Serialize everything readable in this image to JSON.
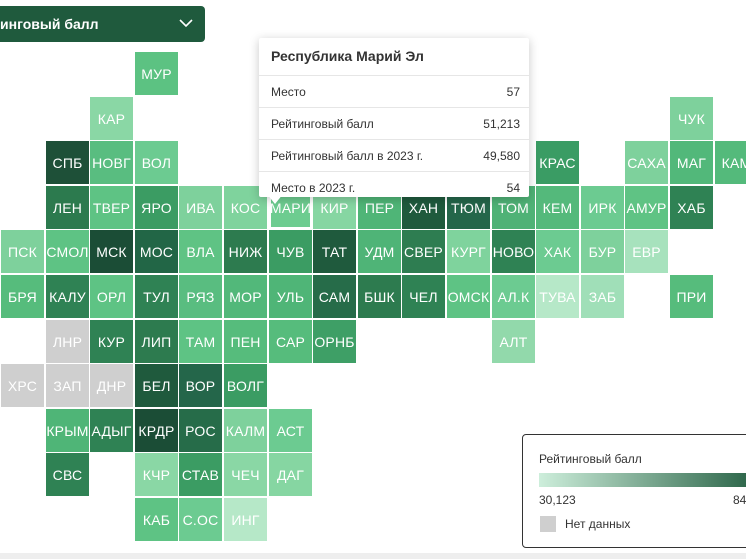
{
  "dropdown": {
    "label": "инговый балл"
  },
  "tooltip": {
    "title": "Республика Марий Эл",
    "rows": [
      {
        "label": "Место",
        "value": "57"
      },
      {
        "label": "Рейтинговый балл",
        "value": "51,213"
      },
      {
        "label": "Рейтинговый балл в 2023 г.",
        "value": "49,580"
      },
      {
        "label": "Место в 2023 г.",
        "value": "54"
      }
    ]
  },
  "legend": {
    "title": "Рейтинговый балл",
    "min": "30,123",
    "max": "84",
    "no_data": "Нет данных",
    "gradient_start": "#cdeedb",
    "gradient_end": "#1f5a3d",
    "no_data_color": "#cfcfcf"
  },
  "regions": [
    {
      "label": "МУР",
      "row": 0,
      "col": 3,
      "color": "#5cc282"
    },
    {
      "label": "КАР",
      "row": 1,
      "col": 2,
      "color": "#8ad7a5"
    },
    {
      "label": "ЧУК",
      "row": 1,
      "col": 15,
      "color": "#7ed19c"
    },
    {
      "label": "СПБ",
      "row": 2,
      "col": 1,
      "color": "#1e5038"
    },
    {
      "label": "НОВГ",
      "row": 2,
      "col": 2,
      "color": "#59bd80"
    },
    {
      "label": "ВОЛ",
      "row": 2,
      "col": 3,
      "color": "#6ccb91"
    },
    {
      "label": "КРАС",
      "row": 2,
      "col": 12,
      "color": "#3a9c64"
    },
    {
      "label": "САХА",
      "row": 2,
      "col": 14,
      "color": "#7ed19c"
    },
    {
      "label": "МАГ",
      "row": 2,
      "col": 15,
      "color": "#52b87a"
    },
    {
      "label": "КАМ",
      "row": 2,
      "col": 16,
      "color": "#54ba7b"
    },
    {
      "label": "ЛЕН",
      "row": 3,
      "col": 1,
      "color": "#2c7a4e"
    },
    {
      "label": "ТВЕР",
      "row": 3,
      "col": 2,
      "color": "#5ec384"
    },
    {
      "label": "ЯРО",
      "row": 3,
      "col": 3,
      "color": "#3b9c63"
    },
    {
      "label": "ИВА",
      "row": 3,
      "col": 4,
      "color": "#7ed19c"
    },
    {
      "label": "КОС",
      "row": 3,
      "col": 5,
      "color": "#7fd39d"
    },
    {
      "label": "МАРИ",
      "row": 3,
      "col": 6,
      "color": "#6dcc90",
      "selected": true
    },
    {
      "label": "КИР",
      "row": 3,
      "col": 7,
      "color": "#86d6a2"
    },
    {
      "label": "ПЕР",
      "row": 3,
      "col": 8,
      "color": "#4fb577"
    },
    {
      "label": "ХАН",
      "row": 3,
      "col": 9,
      "color": "#1f5a3d"
    },
    {
      "label": "ТЮМ",
      "row": 3,
      "col": 10,
      "color": "#24664a"
    },
    {
      "label": "ТОМ",
      "row": 3,
      "col": 11,
      "color": "#4fb276"
    },
    {
      "label": "КЕМ",
      "row": 3,
      "col": 12,
      "color": "#54b97b"
    },
    {
      "label": "ИРК",
      "row": 3,
      "col": 13,
      "color": "#6ccb91"
    },
    {
      "label": "АМУР",
      "row": 3,
      "col": 14,
      "color": "#5fc384"
    },
    {
      "label": "ХАБ",
      "row": 3,
      "col": 15,
      "color": "#2f8254"
    },
    {
      "label": "ПСК",
      "row": 4,
      "col": 0,
      "color": "#7ed19c"
    },
    {
      "label": "СМОЛ",
      "row": 4,
      "col": 1,
      "color": "#5ec384"
    },
    {
      "label": "МСК",
      "row": 4,
      "col": 2,
      "color": "#1b4d36"
    },
    {
      "label": "МОС",
      "row": 4,
      "col": 3,
      "color": "#226646"
    },
    {
      "label": "ВЛА",
      "row": 4,
      "col": 4,
      "color": "#5fc384"
    },
    {
      "label": "НИЖ",
      "row": 4,
      "col": 5,
      "color": "#2d7b4f"
    },
    {
      "label": "ЧУВ",
      "row": 4,
      "col": 6,
      "color": "#3b9c63"
    },
    {
      "label": "ТАТ",
      "row": 4,
      "col": 7,
      "color": "#1f5a3d"
    },
    {
      "label": "УДМ",
      "row": 4,
      "col": 8,
      "color": "#4fb477"
    },
    {
      "label": "СВЕР",
      "row": 4,
      "col": 9,
      "color": "#2e7d51"
    },
    {
      "label": "КУРГ",
      "row": 4,
      "col": 10,
      "color": "#7fd39d"
    },
    {
      "label": "НОВО",
      "row": 4,
      "col": 11,
      "color": "#2f8254"
    },
    {
      "label": "ХАК",
      "row": 4,
      "col": 12,
      "color": "#6ccb91"
    },
    {
      "label": "БУР",
      "row": 4,
      "col": 13,
      "color": "#7ed19c"
    },
    {
      "label": "ЕВР",
      "row": 4,
      "col": 14,
      "color": "#a7e2bd"
    },
    {
      "label": "БРЯ",
      "row": 5,
      "col": 0,
      "color": "#56bc7c"
    },
    {
      "label": "КАЛУ",
      "row": 5,
      "col": 1,
      "color": "#2f8254"
    },
    {
      "label": "ОРЛ",
      "row": 5,
      "col": 2,
      "color": "#5ec384"
    },
    {
      "label": "ТУЛ",
      "row": 5,
      "col": 3,
      "color": "#2f8254"
    },
    {
      "label": "РЯЗ",
      "row": 5,
      "col": 4,
      "color": "#59bd80"
    },
    {
      "label": "МОР",
      "row": 5,
      "col": 5,
      "color": "#52b87a"
    },
    {
      "label": "УЛЬ",
      "row": 5,
      "col": 6,
      "color": "#4fb577"
    },
    {
      "label": "САМ",
      "row": 5,
      "col": 7,
      "color": "#266c49"
    },
    {
      "label": "БШК",
      "row": 5,
      "col": 8,
      "color": "#2d7b4f"
    },
    {
      "label": "ЧЕЛ",
      "row": 5,
      "col": 9,
      "color": "#2f8254"
    },
    {
      "label": "ОМСК",
      "row": 5,
      "col": 10,
      "color": "#5ec384"
    },
    {
      "label": "АЛ.К",
      "row": 5,
      "col": 11,
      "color": "#6ccb91"
    },
    {
      "label": "ТУВА",
      "row": 5,
      "col": 12,
      "color": "#b6e8c8"
    },
    {
      "label": "ЗАБ",
      "row": 5,
      "col": 13,
      "color": "#a0dfb8"
    },
    {
      "label": "ПРИ",
      "row": 5,
      "col": 15,
      "color": "#56bc7c"
    },
    {
      "label": "ЛНР",
      "row": 6,
      "col": 1,
      "color": "#cfcfcf"
    },
    {
      "label": "КУР",
      "row": 6,
      "col": 2,
      "color": "#2f8254"
    },
    {
      "label": "ЛИП",
      "row": 6,
      "col": 3,
      "color": "#2d7b4f"
    },
    {
      "label": "ТАМ",
      "row": 6,
      "col": 4,
      "color": "#5ec384"
    },
    {
      "label": "ПЕН",
      "row": 6,
      "col": 5,
      "color": "#56bc7c"
    },
    {
      "label": "САР",
      "row": 6,
      "col": 6,
      "color": "#56bc7c"
    },
    {
      "label": "ОРНБ",
      "row": 6,
      "col": 7,
      "color": "#3e9f66"
    },
    {
      "label": "АЛТ",
      "row": 6,
      "col": 11,
      "color": "#92d9ab"
    },
    {
      "label": "ХРС",
      "row": 7,
      "col": 0,
      "color": "#cfcfcf"
    },
    {
      "label": "ЗАП",
      "row": 7,
      "col": 1,
      "color": "#cfcfcf"
    },
    {
      "label": "ДНР",
      "row": 7,
      "col": 2,
      "color": "#cfcfcf"
    },
    {
      "label": "БЕЛ",
      "row": 7,
      "col": 3,
      "color": "#1f5a3d"
    },
    {
      "label": "ВОР",
      "row": 7,
      "col": 4,
      "color": "#24664a"
    },
    {
      "label": "ВОЛГ",
      "row": 7,
      "col": 5,
      "color": "#3b9c63"
    },
    {
      "label": "КРЫМ",
      "row": 8,
      "col": 1,
      "color": "#4fb577"
    },
    {
      "label": "АДЫГ",
      "row": 8,
      "col": 2,
      "color": "#2f8254"
    },
    {
      "label": "КРДР",
      "row": 8,
      "col": 3,
      "color": "#1b4d36"
    },
    {
      "label": "РОС",
      "row": 8,
      "col": 4,
      "color": "#266c49"
    },
    {
      "label": "КАЛМ",
      "row": 8,
      "col": 5,
      "color": "#7ed19c"
    },
    {
      "label": "АСТ",
      "row": 8,
      "col": 6,
      "color": "#6ccb91"
    },
    {
      "label": "СВС",
      "row": 9,
      "col": 1,
      "color": "#2f8254"
    },
    {
      "label": "КЧР",
      "row": 9,
      "col": 3,
      "color": "#8ad7a5"
    },
    {
      "label": "СТАВ",
      "row": 9,
      "col": 4,
      "color": "#3b9c63"
    },
    {
      "label": "ЧЕЧ",
      "row": 9,
      "col": 5,
      "color": "#8ad7a5"
    },
    {
      "label": "ДАГ",
      "row": 9,
      "col": 6,
      "color": "#86d6a2"
    },
    {
      "label": "КАБ",
      "row": 10,
      "col": 3,
      "color": "#5ec384"
    },
    {
      "label": "С.ОС",
      "row": 10,
      "col": 4,
      "color": "#6ccb91"
    },
    {
      "label": "ИНГ",
      "row": 10,
      "col": 5,
      "color": "#b6e8c8"
    }
  ]
}
